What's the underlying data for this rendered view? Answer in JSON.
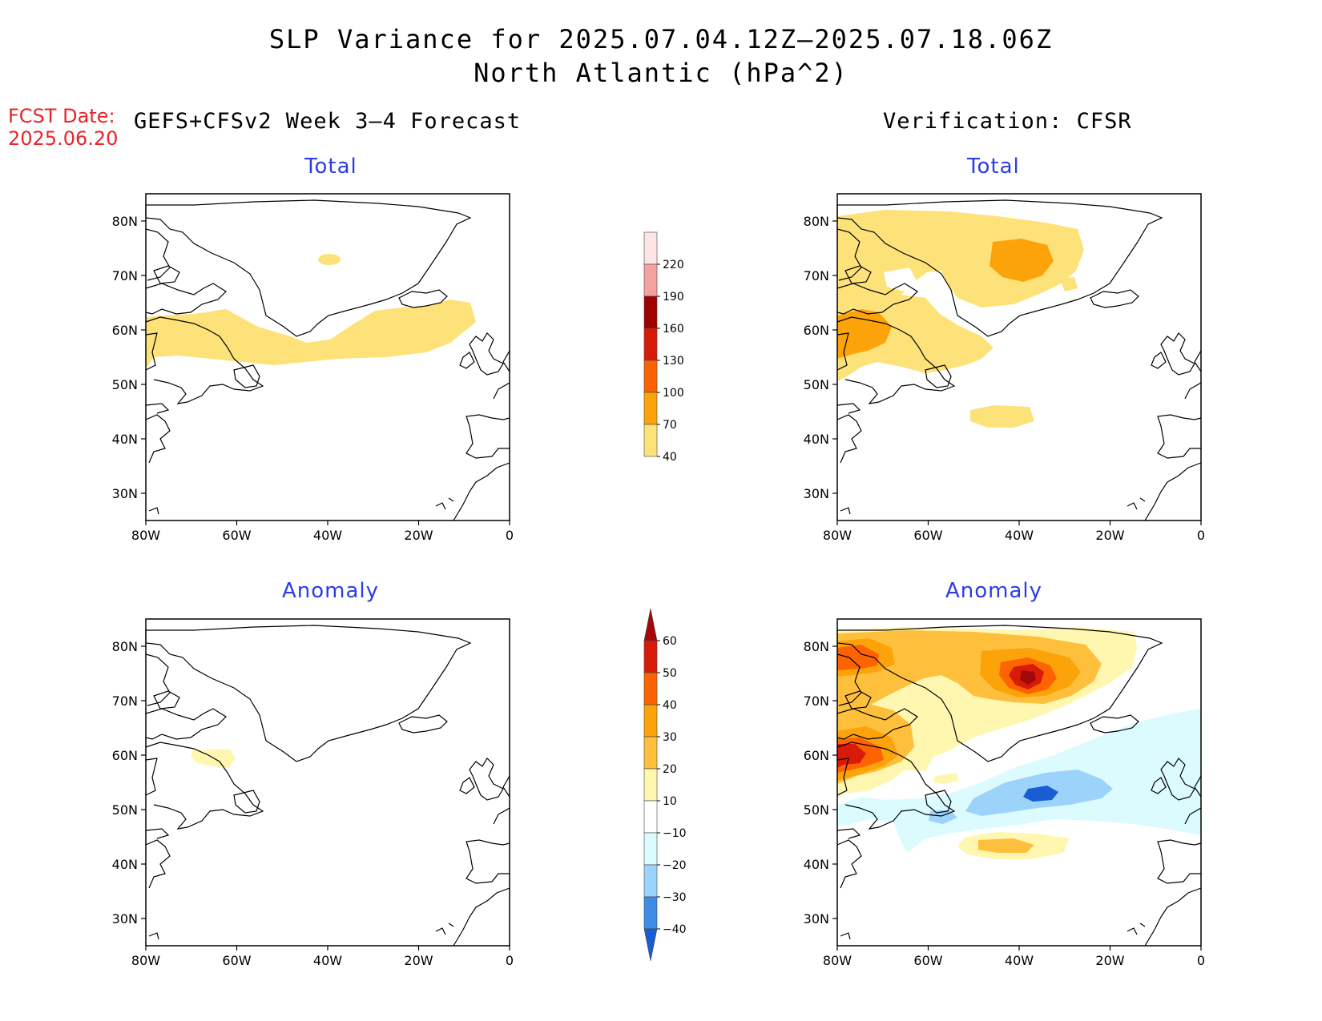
{
  "title": {
    "line1": "SLP Variance for 2025.07.04.12Z–2025.07.18.06Z",
    "line2": "North Atlantic (hPa^2)"
  },
  "fcst": {
    "label": "FCST Date:",
    "date": "2025.06.20"
  },
  "columns": {
    "left": "GEFS+CFSv2 Week 3–4 Forecast",
    "right": "Verification: CFSR"
  },
  "panels": {
    "forecast_total": "Total",
    "forecast_anomaly": "Anomaly",
    "verif_total": "Total",
    "verif_anomaly": "Anomaly"
  },
  "axes": {
    "lat_ticks": [
      "80N",
      "70N",
      "60N",
      "50N",
      "40N",
      "30N"
    ],
    "lon_ticks": [
      "80W",
      "60W",
      "40W",
      "20W",
      "0"
    ],
    "lat_range": [
      25,
      85
    ],
    "lon_range": [
      -80,
      0
    ]
  },
  "colorbars": {
    "total": {
      "levels": [
        "220",
        "190",
        "160",
        "130",
        "100",
        "70",
        "40"
      ],
      "colors": [
        "#fde5e5",
        "#f4a1a1",
        "#a00000",
        "#d81a08",
        "#fd6301",
        "#fca30a",
        "#fde27a"
      ]
    },
    "anomaly": {
      "levels": [
        "60",
        "50",
        "40",
        "30",
        "20",
        "10",
        "−10",
        "−20",
        "−30",
        "−40"
      ],
      "colors": [
        "#a50808",
        "#d81a08",
        "#fd6301",
        "#fca30a",
        "#fdbf3c",
        "#fff7b0",
        "#ffffff",
        "#dcfbff",
        "#9cd3fa",
        "#3c8be6",
        "#1a5cd4"
      ]
    }
  },
  "chart_data": {
    "type": "heatmap",
    "variable": "SLP Variance",
    "units": "hPa^2",
    "region": "North Atlantic",
    "valid_period": "2025.07.04.12Z–2025.07.18.06Z",
    "panels": [
      {
        "name": "GEFS+CFSv2 Week 3–4 Forecast – Total",
        "features": [
          {
            "range": "40–70",
            "lat": [
              52,
              65
            ],
            "lon": [
              -80,
              -5
            ],
            "note": "band across 55–60N"
          },
          {
            "range": "40–70",
            "lat": [
              72,
              74
            ],
            "lon": [
              -43,
              -39
            ]
          }
        ]
      },
      {
        "name": "GEFS+CFSv2 Week 3–4 Forecast – Anomaly",
        "features": [
          {
            "range": "10–20",
            "lat": [
              58,
              61
            ],
            "lon": [
              -69,
              -59
            ]
          }
        ]
      },
      {
        "name": "Verification: CFSR – Total",
        "features": [
          {
            "range": "40–70",
            "lat": [
              50,
              83
            ],
            "lon": [
              -80,
              -25
            ]
          },
          {
            "range": "70–100",
            "lat": [
              69,
              76
            ],
            "lon": [
              -47,
              -33
            ]
          },
          {
            "range": "70–100",
            "lat": [
              55,
              63
            ],
            "lon": [
              -80,
              -68
            ]
          },
          {
            "range": "40–70",
            "lat": [
              44,
              47
            ],
            "lon": [
              -46,
              -33
            ]
          }
        ]
      },
      {
        "name": "Verification: CFSR – Anomaly",
        "features": [
          {
            "range": "50–60",
            "lat": [
              72,
              75
            ],
            "lon": [
              -42,
              -38
            ],
            "peak": "maximum near 73N 40W"
          },
          {
            "range": "40–50",
            "lat": [
              58,
              62
            ],
            "lon": [
              -80,
              -72
            ]
          },
          {
            "range": "10–30",
            "lat": [
              55,
              84
            ],
            "lon": [
              -80,
              -20
            ]
          },
          {
            "range": "−30–−40",
            "lat": [
              52,
              54
            ],
            "lon": [
              -44,
              -35
            ],
            "peak": "minimum near 53N 40W"
          },
          {
            "range": "−10–−30",
            "lat": [
              45,
              68
            ],
            "lon": [
              -75,
              0
            ]
          },
          {
            "range": "20–30",
            "lat": [
              43,
              46
            ],
            "lon": [
              -45,
              -32
            ]
          }
        ]
      }
    ]
  }
}
